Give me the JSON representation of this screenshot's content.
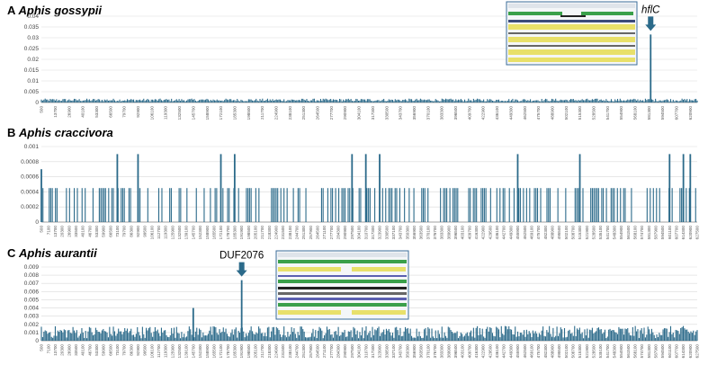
{
  "chart_data": [
    {
      "type": "bar",
      "panel_letter": "A",
      "title": "Aphis gossypii",
      "ylim": [
        0,
        0.04
      ],
      "yticks": [
        "0",
        "0.005",
        "0.01",
        "0.015",
        "0.02",
        "0.025",
        "0.03",
        "0.035",
        "0.04"
      ],
      "x_range": [
        500,
        627500
      ],
      "xtick_step": 13200,
      "baseline_level": 0.0012,
      "peaks": [
        {
          "x": 583000,
          "value": 0.0315
        }
      ],
      "annotation": {
        "label": "hflC",
        "x": 583000
      },
      "grid": true,
      "color": "#2b6a8a"
    },
    {
      "type": "bar",
      "panel_letter": "B",
      "title": "Aphis craccivora",
      "ylim": [
        0,
        0.001
      ],
      "yticks": [
        "0",
        "0.0002",
        "0.0004",
        "0.0006",
        "0.0008",
        "0.001"
      ],
      "x_range": [
        500,
        627500
      ],
      "xtick_step": 6600,
      "baseline_level": 0.00045,
      "peaks": [
        {
          "x": 500,
          "value": 0.0007
        },
        {
          "x": 73100,
          "value": 0.0009
        },
        {
          "x": 92900,
          "value": 0.0009
        },
        {
          "x": 172100,
          "value": 0.0009
        },
        {
          "x": 185300,
          "value": 0.0009
        },
        {
          "x": 297500,
          "value": 0.0009
        },
        {
          "x": 310700,
          "value": 0.0009
        },
        {
          "x": 323900,
          "value": 0.0009
        },
        {
          "x": 455900,
          "value": 0.0009
        },
        {
          "x": 515300,
          "value": 0.0009
        },
        {
          "x": 601100,
          "value": 0.0009
        },
        {
          "x": 614300,
          "value": 0.0009
        },
        {
          "x": 620900,
          "value": 0.0009
        }
      ],
      "grid": true,
      "color": "#2b6a8a"
    },
    {
      "type": "bar",
      "panel_letter": "C",
      "title": "Aphis aurantii",
      "ylim": [
        0,
        0.009
      ],
      "yticks": [
        "0",
        "0.001",
        "0.002",
        "0.003",
        "0.004",
        "0.005",
        "0.006",
        "0.007",
        "0.008",
        "0.009"
      ],
      "x_range": [
        500,
        627500
      ],
      "xtick_step": 6600,
      "baseline_level": 0.0015,
      "peaks": [
        {
          "x": 145700,
          "value": 0.004
        },
        {
          "x": 192000,
          "value": 0.0074
        }
      ],
      "annotation": {
        "label": "DUF2076",
        "x": 192000
      },
      "grid": true,
      "color": "#2b6a8a"
    }
  ]
}
